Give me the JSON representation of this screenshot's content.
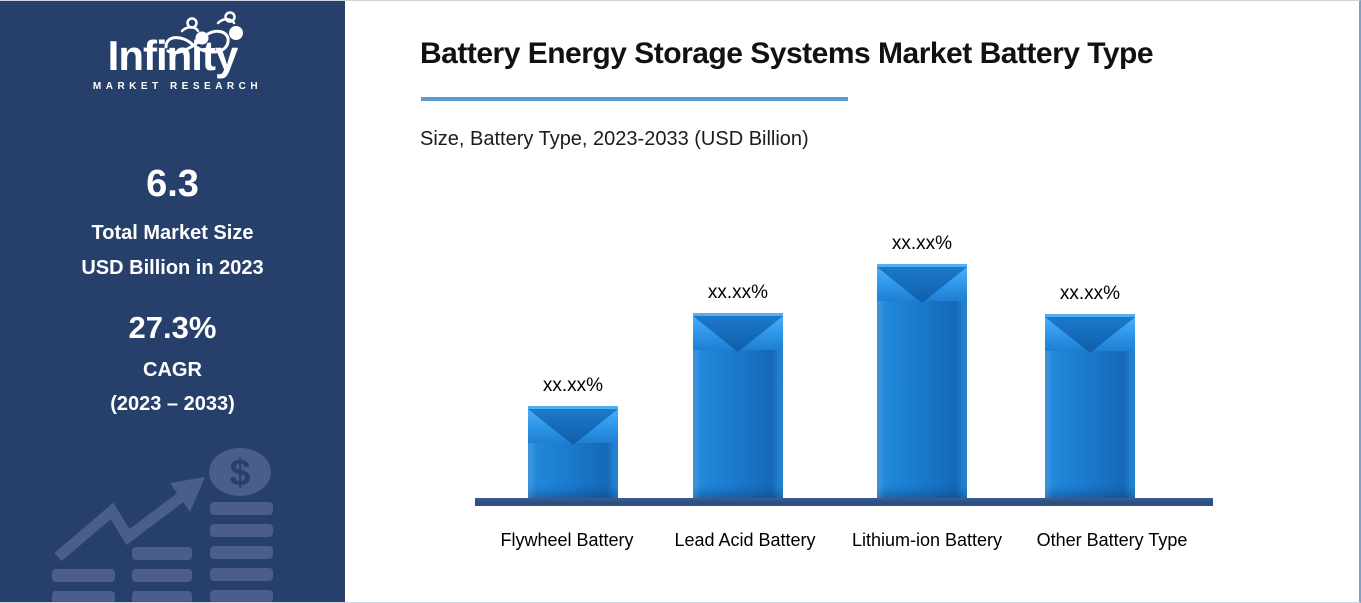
{
  "sidebar": {
    "logo": {
      "brand": "Infinity",
      "tagline": "MARKET RESEARCH"
    },
    "market_size": {
      "value": "6.3",
      "label_line1": "Total Market Size",
      "label_line2": "USD Billion in 2023"
    },
    "cagr": {
      "value": "27.3%",
      "label": "CAGR",
      "period": "(2023 – 2033)"
    },
    "colors": {
      "background": "#27406B",
      "graphic": "#4A5D8C"
    }
  },
  "header": {
    "title": "Battery Energy Storage Systems Market Battery Type",
    "subtitle": "Size, Battery Type, 2023-2033 (USD Billion)",
    "underline_color": "#5B9BD5"
  },
  "chart_data": {
    "type": "bar",
    "title": "Battery Energy Storage Systems Market Battery Type",
    "subtitle": "Size, Battery Type, 2023-2033 (USD Billion)",
    "categories": [
      "Flywheel Battery",
      "Lead Acid Battery",
      "Lithium-ion Battery",
      "Other Battery Type"
    ],
    "value_labels": [
      "xx.xx%",
      "xx.xx%",
      "xx.xx%",
      "xx.xx%"
    ],
    "values_masked": true,
    "relative_heights": [
      0.393,
      0.791,
      1.0,
      0.786
    ],
    "bar_color": "#1B7ACD",
    "axis_color": "#2E4F83",
    "grid": false,
    "legend": "none"
  }
}
